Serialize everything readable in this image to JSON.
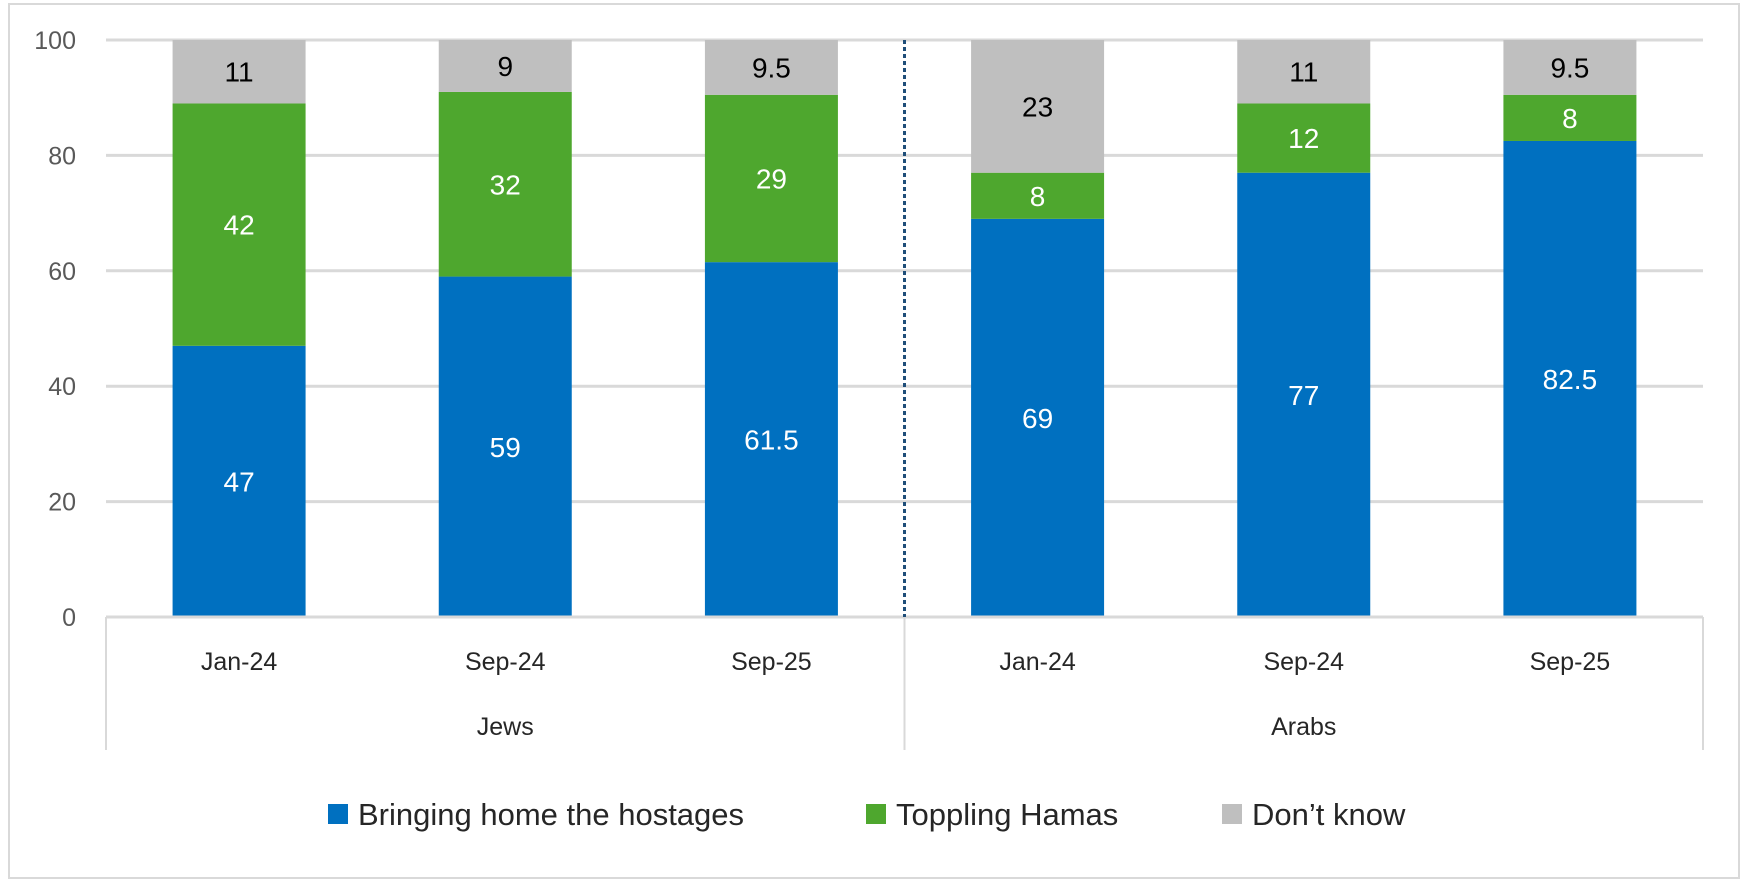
{
  "chart_data": {
    "type": "bar",
    "stacked": true,
    "title": "",
    "xlabel": "",
    "ylabel": "",
    "ylim": [
      0,
      100
    ],
    "yticks": [
      0,
      20,
      40,
      60,
      80,
      100
    ],
    "grid": true,
    "legend_position": "bottom",
    "groups": [
      {
        "name": "Jews",
        "categories": [
          "Jan-24",
          "Sep-24",
          "Sep-25"
        ]
      },
      {
        "name": "Arabs",
        "categories": [
          "Jan-24",
          "Sep-24",
          "Sep-25"
        ]
      }
    ],
    "categories": [
      "Jan-24",
      "Sep-24",
      "Sep-25",
      "Jan-24",
      "Sep-24",
      "Sep-25"
    ],
    "series": [
      {
        "name": "Bringing home the hostages",
        "color": "#0070C0",
        "label_color": "#FFFFFF",
        "values": [
          47,
          59,
          61.5,
          69,
          77,
          82.5
        ]
      },
      {
        "name": "Toppling Hamas",
        "color": "#4EA72E",
        "label_color": "#FFFFFF",
        "values": [
          42,
          32,
          29,
          8,
          12,
          8
        ]
      },
      {
        "name": "Don’t know",
        "color": "#BFBFBF",
        "label_color": "#000000",
        "values": [
          11,
          9,
          9.5,
          23,
          11,
          9.5
        ]
      }
    ],
    "divider_color": "#1F4E79"
  }
}
